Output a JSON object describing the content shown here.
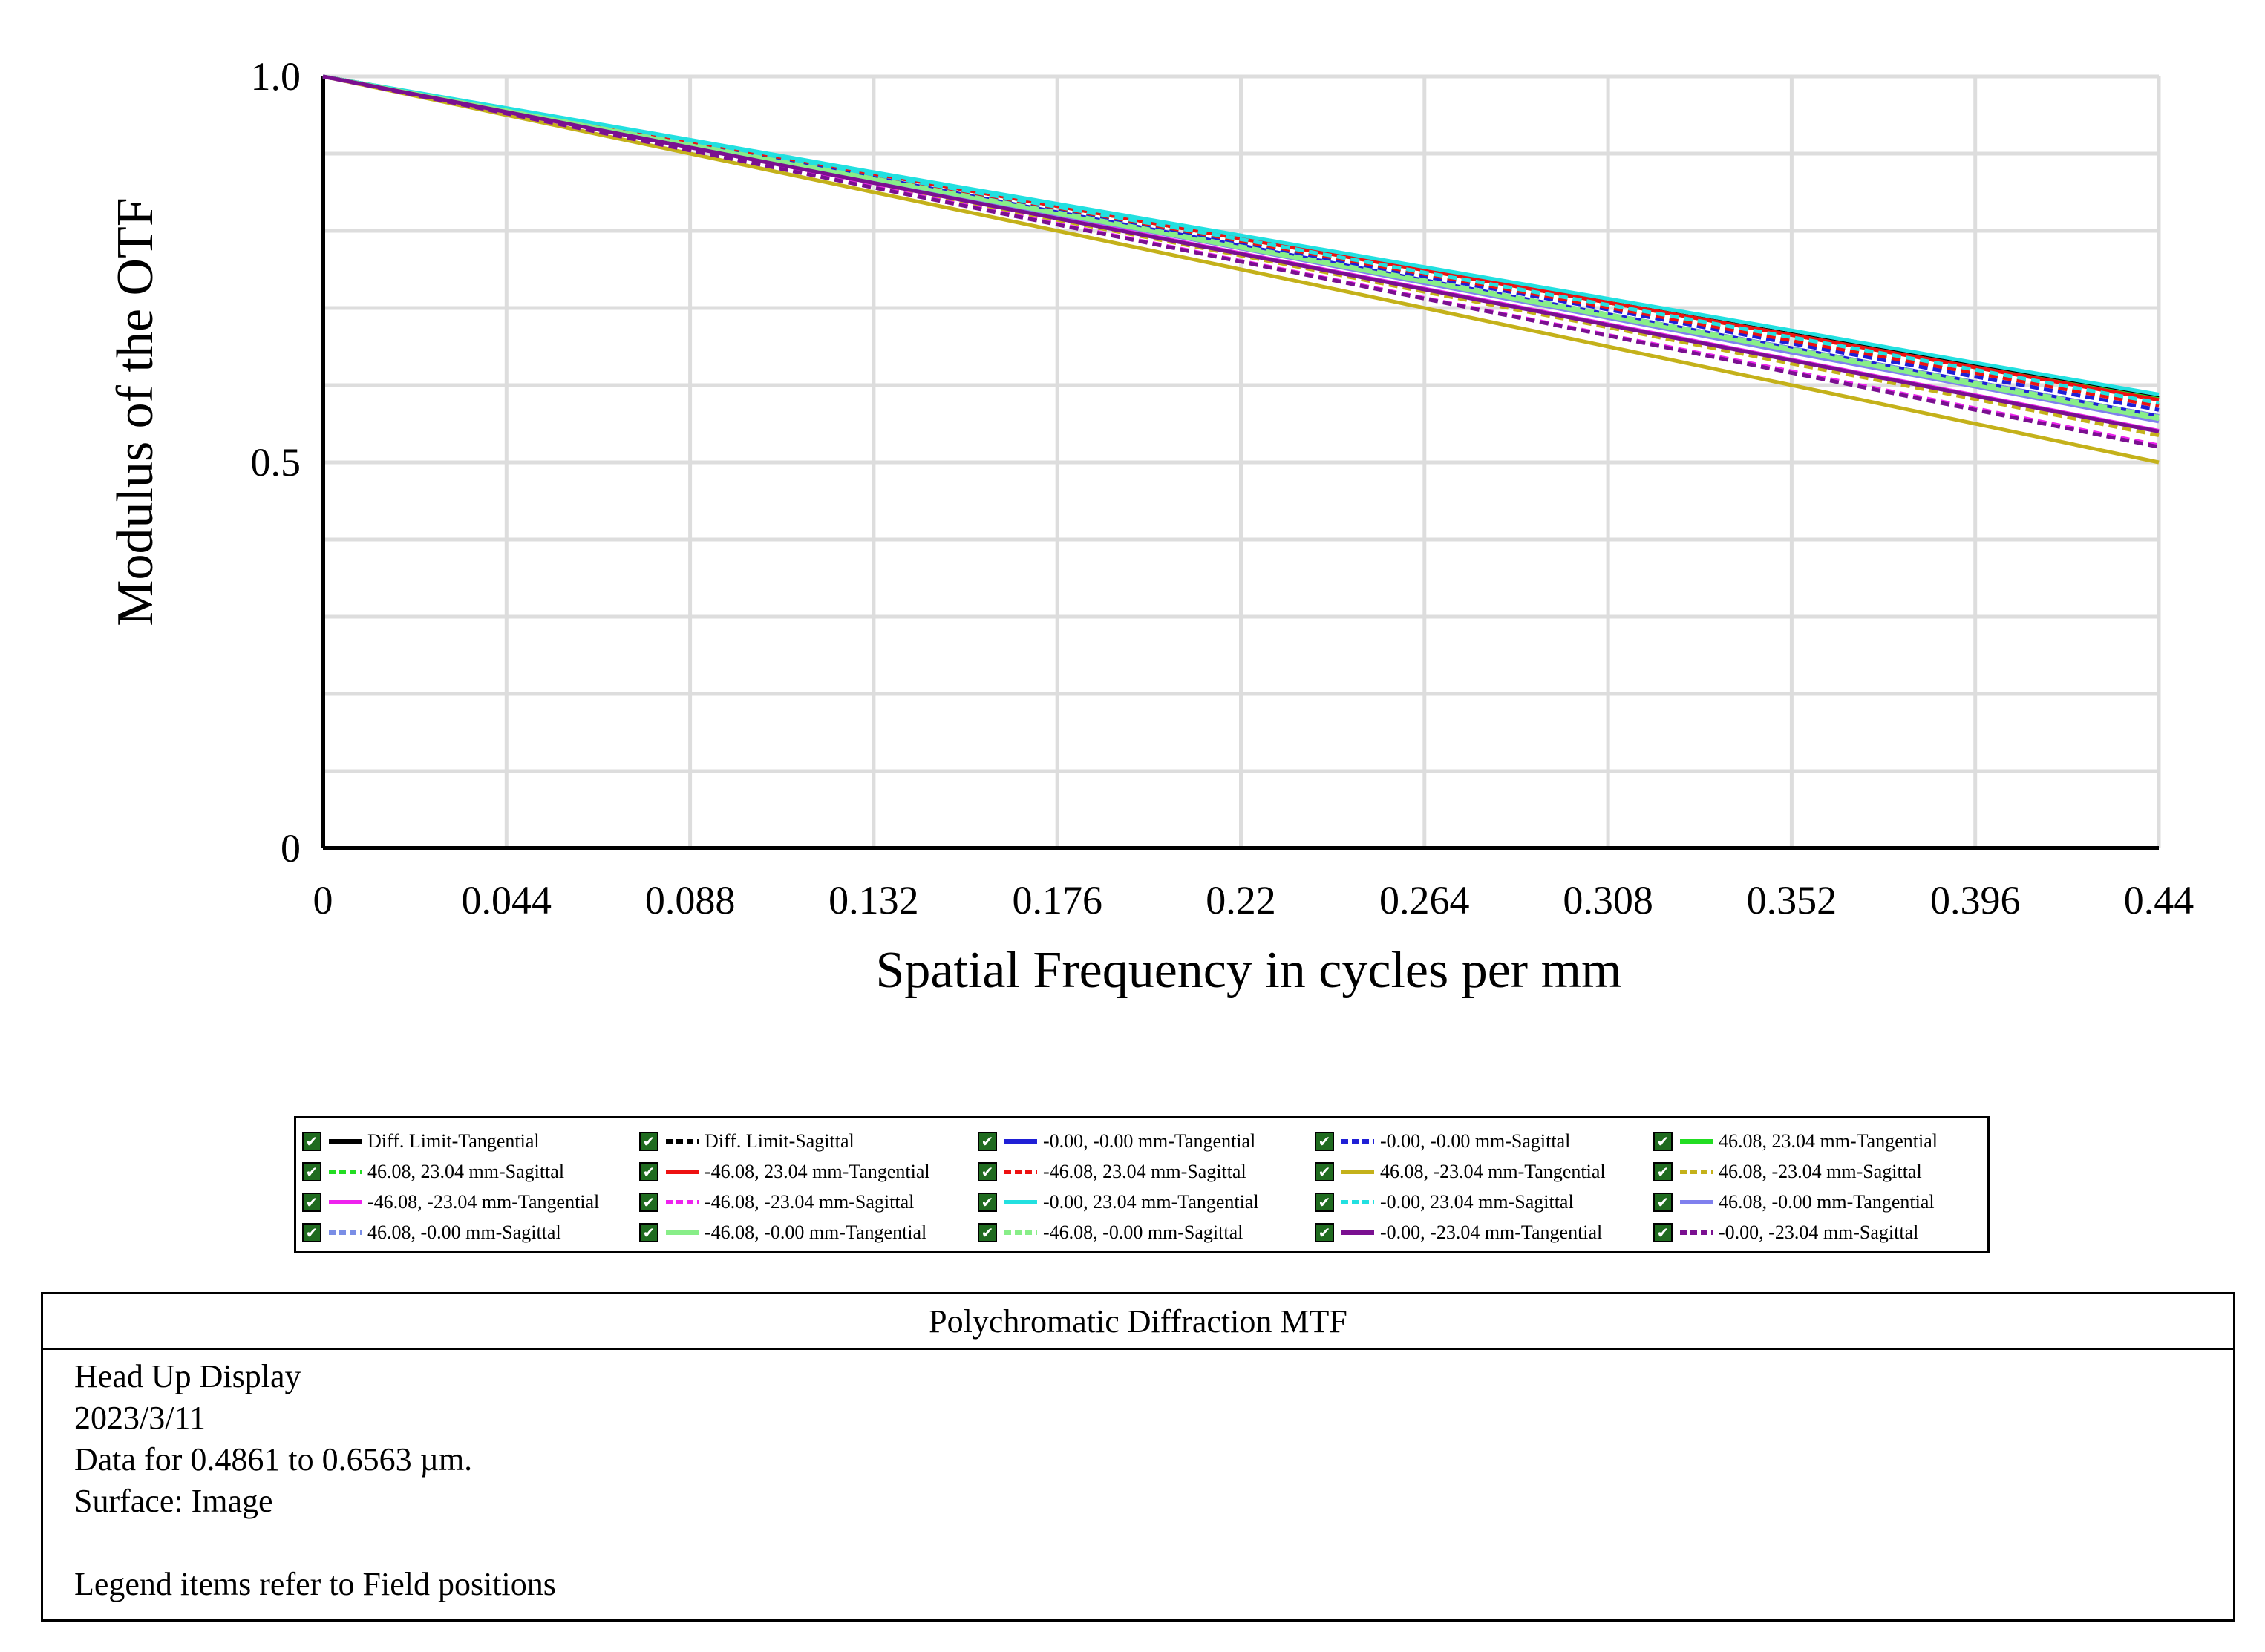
{
  "chart_data": {
    "type": "line",
    "xlabel": "Spatial Frequency in cycles per mm",
    "ylabel": "Modulus of the OTF",
    "xlim": [
      0,
      0.44
    ],
    "ylim": [
      0,
      1.0
    ],
    "x_ticks": [
      "0",
      "0.044",
      "0.088",
      "0.132",
      "0.176",
      "0.22",
      "0.264",
      "0.308",
      "0.352",
      "0.396",
      "0.44"
    ],
    "y_ticks": [
      "0",
      "0.5",
      "1.0"
    ],
    "grid": true,
    "x": [
      0,
      0.044,
      0.088,
      0.132,
      0.176,
      0.22,
      0.264,
      0.308,
      0.352,
      0.396,
      0.44
    ],
    "series": [
      {
        "name": "Diff. Limit-Tangential",
        "color": "#000000",
        "dash": false,
        "values": [
          1.0,
          0.958,
          0.916,
          0.874,
          0.832,
          0.79,
          0.75,
          0.707,
          0.666,
          0.625,
          0.584
        ]
      },
      {
        "name": "Diff. Limit-Sagittal",
        "color": "#000000",
        "dash": true,
        "values": [
          1.0,
          0.958,
          0.916,
          0.874,
          0.832,
          0.79,
          0.75,
          0.707,
          0.666,
          0.625,
          0.584
        ]
      },
      {
        "name": "-0.00, -0.00 mm-Tangential",
        "color": "#1f1fd6",
        "dash": false,
        "values": [
          1.0,
          0.957,
          0.913,
          0.869,
          0.824,
          0.781,
          0.736,
          0.692,
          0.648,
          0.604,
          0.56
        ]
      },
      {
        "name": "-0.00, -0.00 mm-Sagittal",
        "color": "#1f1fd6",
        "dash": true,
        "values": [
          1.0,
          0.957,
          0.914,
          0.871,
          0.828,
          0.784,
          0.741,
          0.698,
          0.654,
          0.611,
          0.568
        ]
      },
      {
        "name": "46.08, 23.04 mm-Tangential",
        "color": "#22dd22",
        "dash": false,
        "values": [
          1.0,
          0.958,
          0.916,
          0.874,
          0.832,
          0.79,
          0.749,
          0.707,
          0.665,
          0.623,
          0.582
        ]
      },
      {
        "name": "46.08, 23.04 mm-Sagittal",
        "color": "#22dd22",
        "dash": true,
        "values": [
          1.0,
          0.958,
          0.915,
          0.872,
          0.83,
          0.787,
          0.744,
          0.702,
          0.659,
          0.616,
          0.574
        ]
      },
      {
        "name": "-46.08, 23.04 mm-Tangential",
        "color": "#ee1111",
        "dash": false,
        "values": [
          1.0,
          0.958,
          0.916,
          0.874,
          0.832,
          0.79,
          0.749,
          0.707,
          0.665,
          0.623,
          0.581
        ]
      },
      {
        "name": "-46.08, 23.04 mm-Sagittal",
        "color": "#ee1111",
        "dash": true,
        "values": [
          1.0,
          0.958,
          0.915,
          0.872,
          0.83,
          0.787,
          0.744,
          0.701,
          0.658,
          0.616,
          0.573
        ]
      },
      {
        "name": "46.08, -23.04 mm-Tangential",
        "color": "#c4b11a",
        "dash": false,
        "values": [
          1.0,
          0.95,
          0.9,
          0.85,
          0.8,
          0.75,
          0.7,
          0.65,
          0.6,
          0.55,
          0.5
        ]
      },
      {
        "name": "46.08, -23.04 mm-Sagittal",
        "color": "#c4b11a",
        "dash": true,
        "values": [
          1.0,
          0.954,
          0.907,
          0.861,
          0.814,
          0.768,
          0.721,
          0.675,
          0.628,
          0.582,
          0.535
        ]
      },
      {
        "name": "-46.08, -23.04 mm-Tangential",
        "color": "#ee22ee",
        "dash": false,
        "values": [
          1.0,
          0.954,
          0.908,
          0.862,
          0.817,
          0.771,
          0.725,
          0.679,
          0.633,
          0.587,
          0.541
        ]
      },
      {
        "name": "-46.08, -23.04 mm-Sagittal",
        "color": "#ee22ee",
        "dash": true,
        "values": [
          1.0,
          0.952,
          0.904,
          0.857,
          0.809,
          0.761,
          0.713,
          0.665,
          0.618,
          0.57,
          0.522
        ]
      },
      {
        "name": "-0.00, 23.04 mm-Tangential",
        "color": "#22e0e0",
        "dash": false,
        "values": [
          1.0,
          0.959,
          0.918,
          0.876,
          0.835,
          0.794,
          0.753,
          0.712,
          0.671,
          0.629,
          0.588
        ]
      },
      {
        "name": "-0.00, 23.04 mm-Sagittal",
        "color": "#22e0e0",
        "dash": true,
        "values": [
          1.0,
          0.958,
          0.915,
          0.873,
          0.831,
          0.789,
          0.746,
          0.704,
          0.662,
          0.62,
          0.577
        ]
      },
      {
        "name": "46.08, -0.00 mm-Tangential",
        "color": "#8080ee",
        "dash": false,
        "values": [
          1.0,
          0.955,
          0.911,
          0.866,
          0.821,
          0.777,
          0.732,
          0.687,
          0.642,
          0.598,
          0.553
        ]
      },
      {
        "name": "46.08, -0.00 mm-Sagittal",
        "color": "#7a8ee6",
        "dash": true,
        "values": [
          1.0,
          0.956,
          0.912,
          0.868,
          0.824,
          0.78,
          0.736,
          0.692,
          0.648,
          0.604,
          0.56
        ]
      },
      {
        "name": "-46.08, -0.00 mm-Tangential",
        "color": "#88ee88",
        "dash": false,
        "values": [
          1.0,
          0.956,
          0.911,
          0.867,
          0.822,
          0.778,
          0.734,
          0.689,
          0.645,
          0.6,
          0.556
        ]
      },
      {
        "name": "-46.08, -0.00 mm-Sagittal",
        "color": "#88ee88",
        "dash": true,
        "values": [
          1.0,
          0.956,
          0.912,
          0.868,
          0.824,
          0.78,
          0.736,
          0.692,
          0.647,
          0.603,
          0.559
        ]
      },
      {
        "name": "-0.00, -23.04 mm-Tangential",
        "color": "#7a1090",
        "dash": false,
        "values": [
          1.0,
          0.954,
          0.908,
          0.862,
          0.816,
          0.77,
          0.724,
          0.678,
          0.632,
          0.586,
          0.54
        ]
      },
      {
        "name": "-0.00, -23.04 mm-Sagittal",
        "color": "#7a1090",
        "dash": true,
        "values": [
          1.0,
          0.952,
          0.904,
          0.856,
          0.808,
          0.76,
          0.712,
          0.664,
          0.616,
          0.568,
          0.52
        ]
      }
    ]
  },
  "info": {
    "title": "Polychromatic Diffraction MTF",
    "lines": [
      "Head Up Display",
      "2023/3/11",
      "Data for 0.4861 to 0.6563 µm.",
      "Surface: Image",
      "",
      "Legend items refer to Field positions"
    ]
  },
  "legend": {
    "check_glyph": "✔"
  }
}
